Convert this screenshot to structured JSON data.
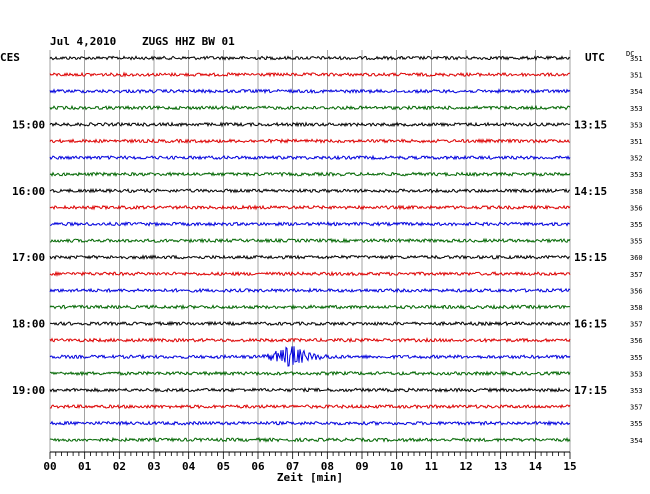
{
  "header": {
    "date": "Jul 4,2010",
    "station": "ZUGS HHZ BW 01",
    "left_zone": "CES",
    "right_zone": "UTC",
    "dc_label": "DC"
  },
  "chart_data": {
    "type": "line",
    "title": "Jul 4,2010   ZUGS HHZ BW 01",
    "xlabel": "Zeit [min]",
    "xlim": [
      0,
      15
    ],
    "x_ticks": [
      "00",
      "01",
      "02",
      "03",
      "04",
      "05",
      "06",
      "07",
      "08",
      "09",
      "10",
      "11",
      "12",
      "13",
      "14",
      "15"
    ],
    "line_colors": [
      "#000000",
      "#dd0000",
      "#0000dd",
      "#006600"
    ],
    "left_hour_labels": [
      {
        "row": 4,
        "label": "15:00"
      },
      {
        "row": 8,
        "label": "16:00"
      },
      {
        "row": 12,
        "label": "17:00"
      },
      {
        "row": 16,
        "label": "18:00"
      },
      {
        "row": 20,
        "label": "19:00"
      }
    ],
    "right_hour_labels": [
      {
        "row": 4,
        "label": "13:15"
      },
      {
        "row": 8,
        "label": "14:15"
      },
      {
        "row": 12,
        "label": "15:15"
      },
      {
        "row": 16,
        "label": "16:15"
      },
      {
        "row": 20,
        "label": "17:15"
      }
    ],
    "dc_values": [
      "351",
      "351",
      "354",
      "353",
      "353",
      "351",
      "352",
      "353",
      "358",
      "356",
      "355",
      "355",
      "360",
      "357",
      "356",
      "358",
      "357",
      "356",
      "355",
      "353",
      "353",
      "357",
      "355",
      "354"
    ],
    "event": {
      "row": 18,
      "start_min": 6.0,
      "peak_min": 6.9,
      "end_min": 8.5,
      "color": "#0000dd"
    }
  }
}
